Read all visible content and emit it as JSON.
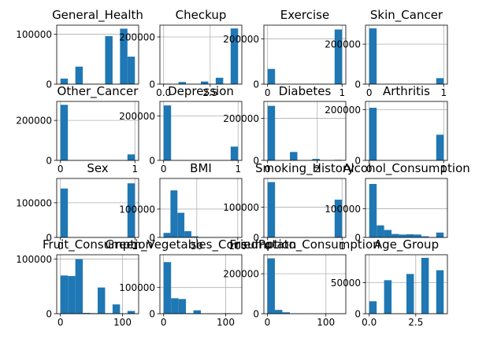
{
  "chart_data": [
    {
      "type": "bar",
      "title": "General_Health",
      "xlim": [
        -0.2,
        4.2
      ],
      "ylim": [
        0,
        118000
      ],
      "xticks": [],
      "yticks": [
        0,
        100000
      ],
      "ytick_labels": [
        "0",
        "100000"
      ],
      "bins": [
        [
          0.0,
          0.4,
          11000
        ],
        [
          0.8,
          1.2,
          35000
        ],
        [
          1.6,
          2.0,
          0
        ],
        [
          2.4,
          2.8,
          96000
        ],
        [
          3.2,
          3.6,
          111000
        ],
        [
          3.6,
          4.0,
          55000
        ]
      ]
    },
    {
      "type": "bar",
      "title": "Checkup",
      "xlim": [
        -0.2,
        4.2
      ],
      "ylim": [
        0,
        250000
      ],
      "xticks": [
        0.0,
        2.5
      ],
      "xtick_labels": [
        "0.0",
        "2.5"
      ],
      "yticks": [
        0,
        200000
      ],
      "ytick_labels": [
        "0",
        "200000"
      ],
      "bins": [
        [
          0.0,
          0.4,
          1000
        ],
        [
          0.8,
          1.2,
          9000
        ],
        [
          2.0,
          2.4,
          11000
        ],
        [
          2.8,
          3.2,
          27000
        ],
        [
          3.6,
          4.0,
          236000
        ]
      ]
    },
    {
      "type": "bar",
      "title": "Exercise",
      "xlim": [
        -0.05,
        1.05
      ],
      "ylim": [
        0,
        260000
      ],
      "xticks": [
        0,
        1
      ],
      "xtick_labels": [
        "0",
        "1"
      ],
      "yticks": [
        0,
        200000
      ],
      "ytick_labels": [
        "0",
        "200000"
      ],
      "bins": [
        [
          0.0,
          0.1,
          67000
        ],
        [
          0.9,
          1.0,
          241000
        ]
      ]
    },
    {
      "type": "bar",
      "title": "Skin_Cancer",
      "xlim": [
        -0.05,
        1.05
      ],
      "ylim": [
        0,
        295000
      ],
      "xticks": [
        0,
        1
      ],
      "xtick_labels": [
        "0",
        "1"
      ],
      "yticks": [
        0,
        200000
      ],
      "ytick_labels": [
        "0",
        "200000"
      ],
      "bins": [
        [
          0.0,
          0.1,
          279000
        ],
        [
          0.9,
          1.0,
          30000
        ]
      ]
    },
    {
      "type": "bar",
      "title": "Other_Cancer",
      "xlim": [
        -0.05,
        1.05
      ],
      "ylim": [
        0,
        295000
      ],
      "xticks": [
        0,
        1
      ],
      "xtick_labels": [
        "0",
        "1"
      ],
      "yticks": [
        0,
        200000
      ],
      "ytick_labels": [
        "0",
        "200000"
      ],
      "bins": [
        [
          0.0,
          0.1,
          278000
        ],
        [
          0.9,
          1.0,
          30000
        ]
      ]
    },
    {
      "type": "bar",
      "title": "Depression",
      "xlim": [
        -0.05,
        1.05
      ],
      "ylim": [
        0,
        265000
      ],
      "xticks": [
        0,
        1
      ],
      "xtick_labels": [
        "0",
        "1"
      ],
      "yticks": [
        0,
        200000
      ],
      "ytick_labels": [
        "0",
        "200000"
      ],
      "bins": [
        [
          0.0,
          0.1,
          247000
        ],
        [
          0.9,
          1.0,
          62000
        ]
      ]
    },
    {
      "type": "bar",
      "title": "Diabetes",
      "xlim": [
        -0.15,
        3.15
      ],
      "ylim": [
        0,
        280000
      ],
      "xticks": [
        0,
        2
      ],
      "xtick_labels": [
        "0",
        "2"
      ],
      "yticks": [
        0,
        200000
      ],
      "ytick_labels": [
        "0",
        "200000"
      ],
      "bins": [
        [
          0.0,
          0.3,
          259000
        ],
        [
          0.9,
          1.2,
          40000
        ],
        [
          1.8,
          2.1,
          7000
        ],
        [
          2.7,
          3.0,
          2700
        ]
      ]
    },
    {
      "type": "bar",
      "title": "Arthritis",
      "xlim": [
        -0.05,
        1.05
      ],
      "ylim": [
        0,
        232000
      ],
      "xticks": [
        0,
        1
      ],
      "xtick_labels": [
        "0",
        "1"
      ],
      "yticks": [
        0,
        200000
      ],
      "ytick_labels": [
        "0",
        "200000"
      ],
      "bins": [
        [
          0.0,
          0.1,
          207000
        ],
        [
          0.9,
          1.0,
          101000
        ]
      ]
    },
    {
      "type": "bar",
      "title": "Sex",
      "xlim": [
        -0.05,
        1.05
      ],
      "ylim": [
        0,
        170000
      ],
      "xticks": [
        0,
        1
      ],
      "xtick_labels": [
        "0",
        "1"
      ],
      "yticks": [
        0,
        100000
      ],
      "ytick_labels": [
        "0",
        "100000"
      ],
      "bins": [
        [
          0.0,
          0.1,
          141000
        ],
        [
          0.9,
          1.0,
          156000
        ]
      ]
    },
    {
      "type": "bar",
      "title": "BMI",
      "xlim": [
        5,
        105
      ],
      "ylim": [
        0,
        208000
      ],
      "xticks": [
        50,
        100
      ],
      "xtick_labels": [
        "50",
        "100"
      ],
      "yticks": [
        0,
        100000
      ],
      "ytick_labels": [
        "0",
        "100000"
      ],
      "bins": [
        [
          9.4,
          17.9,
          16000
        ],
        [
          17.9,
          26.4,
          166000
        ],
        [
          26.4,
          34.9,
          87000
        ],
        [
          34.9,
          43.4,
          22000
        ],
        [
          43.4,
          51.9,
          4000
        ],
        [
          51.9,
          60.4,
          800
        ],
        [
          60.4,
          68.9,
          200
        ]
      ]
    },
    {
      "type": "bar",
      "title": "Smoking_History",
      "xlim": [
        -0.05,
        1.05
      ],
      "ylim": [
        0,
        195000
      ],
      "xticks": [
        0,
        1
      ],
      "xtick_labels": [
        "0",
        "1"
      ],
      "yticks": [
        0,
        100000
      ],
      "ytick_labels": [
        "0",
        "100000"
      ],
      "bins": [
        [
          0.0,
          0.1,
          183000
        ],
        [
          0.9,
          1.0,
          125000
        ]
      ]
    },
    {
      "type": "bar",
      "title": "Alcohol_Consumption",
      "xlim": [
        -1.5,
        31.5
      ],
      "ylim": [
        0,
        205000
      ],
      "xticks": [],
      "yticks": [
        0,
        100000
      ],
      "ytick_labels": [
        "0",
        "100000"
      ],
      "bins": [
        [
          0,
          3,
          186000
        ],
        [
          3,
          6,
          42000
        ],
        [
          6,
          9,
          26000
        ],
        [
          9,
          12,
          12000
        ],
        [
          12,
          15,
          10000
        ],
        [
          15,
          18,
          11000
        ],
        [
          18,
          21,
          10000
        ],
        [
          21,
          24,
          4000
        ],
        [
          24,
          27,
          1000
        ],
        [
          27,
          30,
          17000
        ]
      ]
    },
    {
      "type": "bar",
      "title": "Fruit_Consumption",
      "xlim": [
        -6,
        126
      ],
      "ylim": [
        0,
        108000
      ],
      "xticks": [
        0,
        100
      ],
      "xtick_labels": [
        "0",
        "100"
      ],
      "yticks": [
        0,
        100000
      ],
      "ytick_labels": [
        "0",
        "100000"
      ],
      "bins": [
        [
          0,
          12,
          70000
        ],
        [
          12,
          24,
          69000
        ],
        [
          24,
          36,
          100000
        ],
        [
          36,
          48,
          1500
        ],
        [
          48,
          60,
          1000
        ],
        [
          60,
          72,
          48000
        ],
        [
          72,
          84,
          1000
        ],
        [
          84,
          96,
          17000
        ],
        [
          96,
          108,
          200
        ],
        [
          108,
          120,
          5000
        ]
      ]
    },
    {
      "type": "bar",
      "title": "Green_Vegetables_Consumption",
      "xlim": [
        -6,
        126
      ],
      "ylim": [
        0,
        225000
      ],
      "xticks": [
        0,
        100
      ],
      "xtick_labels": [
        "0",
        "100"
      ],
      "yticks": [
        0,
        100000
      ],
      "ytick_labels": [
        "0",
        "100000"
      ],
      "bins": [
        [
          0,
          12,
          197000
        ],
        [
          12,
          24,
          59000
        ],
        [
          24,
          36,
          56000
        ],
        [
          36,
          48,
          2000
        ],
        [
          48,
          60,
          13000
        ],
        [
          60,
          72,
          1000
        ],
        [
          72,
          84,
          1500
        ],
        [
          84,
          96,
          500
        ],
        [
          96,
          108,
          1800
        ],
        [
          108,
          120,
          200
        ]
      ]
    },
    {
      "type": "bar",
      "title": "FriedPotato_Consumption",
      "xlim": [
        -6,
        134
      ],
      "ylim": [
        0,
        295000
      ],
      "xticks": [
        0,
        100
      ],
      "xtick_labels": [
        "0",
        "100"
      ],
      "yticks": [
        0,
        200000
      ],
      "ytick_labels": [
        "0",
        "200000"
      ],
      "bins": [
        [
          0,
          12.8,
          277000
        ],
        [
          12.8,
          25.6,
          19000
        ],
        [
          25.6,
          38.4,
          7000
        ],
        [
          38.4,
          51.2,
          900
        ],
        [
          51.2,
          64,
          600
        ],
        [
          64,
          76.8,
          300
        ]
      ]
    },
    {
      "type": "bar",
      "title": "Age_Group",
      "xlim": [
        -0.2,
        4.2
      ],
      "ylim": [
        0,
        95000
      ],
      "xticks": [
        0.0,
        2.5
      ],
      "xtick_labels": [
        "0.0",
        "2.5"
      ],
      "yticks": [
        0,
        50000
      ],
      "ytick_labels": [
        "0",
        "50000"
      ],
      "bins": [
        [
          0.0,
          0.4,
          20000
        ],
        [
          0.8,
          1.2,
          54000
        ],
        [
          2.0,
          2.4,
          64000
        ],
        [
          2.8,
          3.2,
          90000
        ],
        [
          3.6,
          4.0,
          70000
        ]
      ]
    }
  ]
}
